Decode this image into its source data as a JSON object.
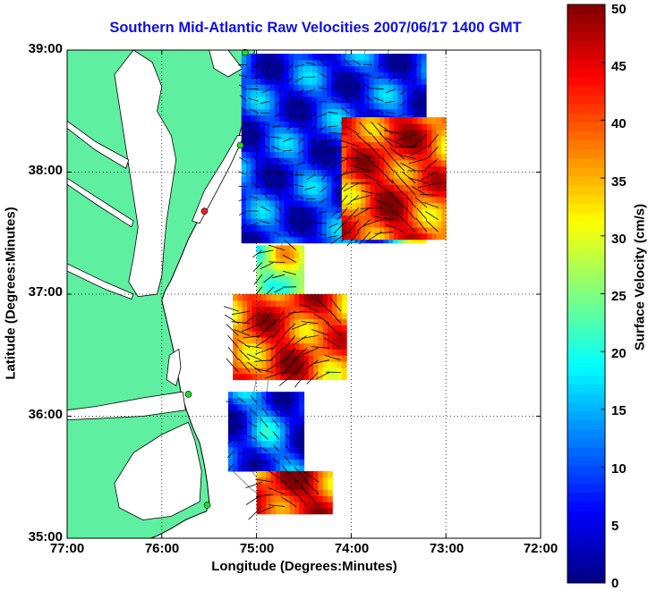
{
  "title": "Southern Mid-Atlantic Raw Velocities 2007/06/17 1400 GMT",
  "axes": {
    "xlabel": "Longitude (Degrees:Minutes)",
    "ylabel": "Latitude (Degrees:Minutes)",
    "lon_ticks": [
      "77:00",
      "76:00",
      "75:00",
      "74:00",
      "73:00",
      "72:00"
    ],
    "lat_ticks": [
      "39:00",
      "38:00",
      "37:00",
      "36:00",
      "35:00"
    ],
    "lon_values": [
      -77,
      -76,
      -75,
      -74,
      -73,
      -72
    ],
    "lat_values": [
      39,
      38,
      37,
      36,
      35
    ],
    "grid": "dotted"
  },
  "colorbar": {
    "label": "Surface Velocity (cm/s)",
    "min": 0,
    "max": 50,
    "ticks": [
      "0",
      "5",
      "10",
      "15",
      "20",
      "25",
      "30",
      "35",
      "40",
      "45",
      "50"
    ],
    "colormap": "jet"
  },
  "colors": {
    "land": "#5ef0a0",
    "coastline": "#000000",
    "bathymetry": "#a0a0a0",
    "title": "#1010e0",
    "site_active": "#22dd22",
    "site_inactive": "#ee2222"
  },
  "stations": [
    {
      "lon": -75.12,
      "lat": 38.98,
      "status": "active"
    },
    {
      "lon": -75.17,
      "lat": 38.22,
      "status": "active"
    },
    {
      "lon": -75.55,
      "lat": 37.68,
      "status": "inactive"
    },
    {
      "lon": -75.72,
      "lat": 36.18,
      "status": "active"
    },
    {
      "lon": -75.52,
      "lat": 35.27,
      "status": "active"
    }
  ],
  "velocity_regions": [
    {
      "name": "north-block",
      "lon": [
        -75.16,
        -73.25
      ],
      "lat": [
        37.42,
        38.92
      ],
      "base_speed": 8
    },
    {
      "name": "north-east-jet",
      "lon": [
        -74.1,
        -73.05
      ],
      "lat": [
        37.45,
        38.4
      ],
      "base_speed": 44
    },
    {
      "name": "delmarva-shelf",
      "lon": [
        -75.0,
        -74.55
      ],
      "lat": [
        36.9,
        37.38
      ],
      "base_speed": 30
    },
    {
      "name": "chesapeake-mouth",
      "lon": [
        -75.25,
        -74.1
      ],
      "lat": [
        36.3,
        36.95
      ],
      "base_speed": 43
    },
    {
      "name": "outer-banks",
      "lon": [
        -75.3,
        -74.55
      ],
      "lat": [
        35.55,
        36.15
      ],
      "base_speed": 12
    },
    {
      "name": "hatteras",
      "lon": [
        -75.0,
        -74.25
      ],
      "lat": [
        35.2,
        35.5
      ],
      "base_speed": 46
    }
  ]
}
